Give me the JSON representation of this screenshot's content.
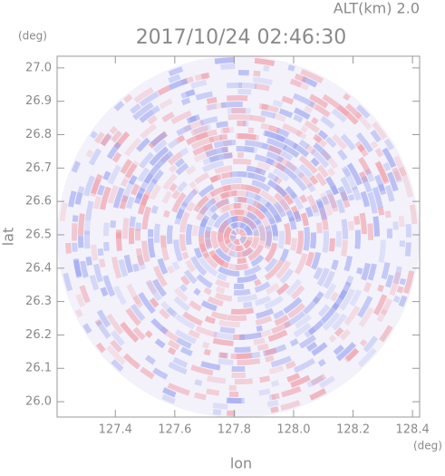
{
  "chart_data": {
    "type": "image",
    "title": "2017/10/24 02:46:30",
    "subtitle": "ALT(km) 2.0",
    "x_label": "lon",
    "x_unit": "(deg)",
    "y_label": "lat",
    "y_unit": "(deg)",
    "xlim": [
      127.204,
      128.424
    ],
    "ylim": [
      25.954,
      27.035
    ],
    "xticks": [
      127.4,
      127.6,
      127.8,
      {
        "value": 128.0,
        "label": "128.0"
      },
      128.2,
      128.4
    ],
    "yticks": [
      {
        "value": 26.0,
        "label": "26.0"
      },
      26.1,
      26.2,
      26.3,
      26.4,
      26.5,
      26.6,
      26.7,
      26.8,
      26.9,
      {
        "value": 27.0,
        "label": "27.0"
      }
    ]
  }
}
